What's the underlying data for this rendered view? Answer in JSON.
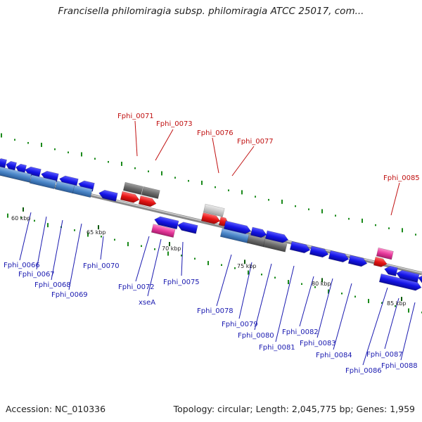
{
  "header": {
    "title": "Francisella philomiragia subsp. philomiragia ATCC 25017, com..."
  },
  "footer": {
    "accession": "Accession: NC_010336",
    "summary": "Topology: circular; Length: 2,045,775 bp; Genes: 1,959"
  },
  "colors": {
    "forward_cds": "#1414e6",
    "reverse_cds": "#4a86c8",
    "rna_gene": "#e61414",
    "pseudo_gene": "#707070",
    "misc_gene": "#c8c8c8",
    "trna_gene": "#e6389b",
    "label_blue": "#1a1ab0",
    "label_red": "#c01010",
    "tick_green": "#1a8a1a",
    "backbone": "#888888"
  },
  "scale_labels": [
    "60 kbp",
    "65 kbp",
    "70 kbp",
    "75 kbp",
    "80 kbp",
    "85 kbp"
  ],
  "gene_labels_above": [
    "Fphi_0071",
    "Fphi_0073",
    "Fphi_0076",
    "Fphi_0077",
    "Fphi_0085"
  ],
  "gene_labels_below": [
    "Fphi_0066",
    "Fphi_0067",
    "Fphi_0068",
    "Fphi_0069",
    "Fphi_0070",
    "Fphi_0072",
    "xseA",
    "Fphi_0075",
    "Fphi_0078",
    "Fphi_0079",
    "Fphi_0080",
    "Fphi_0081",
    "Fphi_0082",
    "Fphi_0083",
    "Fphi_0084",
    "Fphi_0086",
    "Fphi_0087",
    "Fphi_0088"
  ]
}
